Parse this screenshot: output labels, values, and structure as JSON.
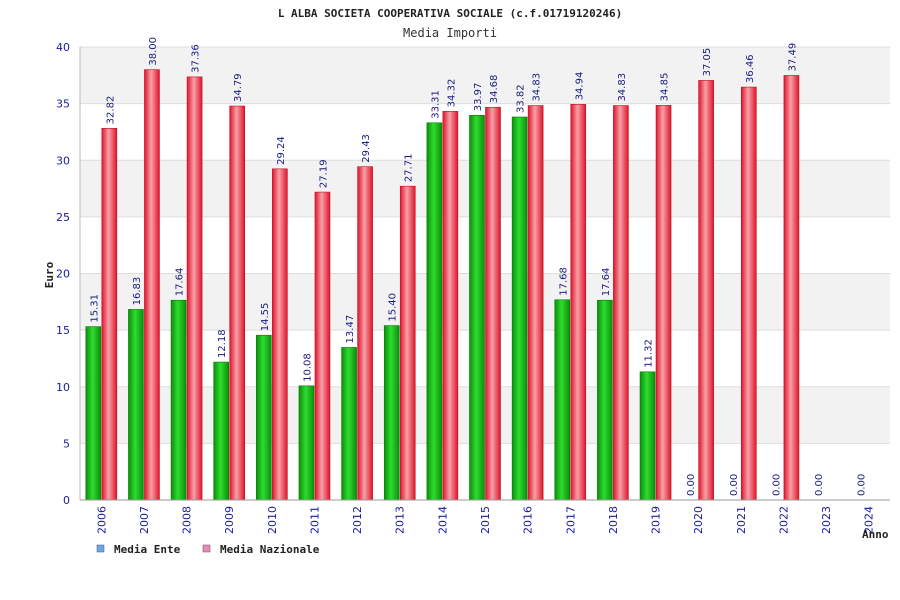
{
  "chart_data": {
    "type": "bar",
    "title": "L ALBA SOCIETA COOPERATIVA SOCIALE (c.f.01719120246)",
    "subtitle": "Media Importi",
    "ylabel": "Euro",
    "xlabel": "Anno",
    "ylim": [
      0,
      40
    ],
    "yticks": [
      "0",
      "5",
      "10",
      "15",
      "20",
      "25",
      "30",
      "35",
      "40"
    ],
    "grid": true,
    "legend_position": "bottom-left",
    "categories": [
      "2006",
      "2007",
      "2008",
      "2009",
      "2010",
      "2011",
      "2012",
      "2013",
      "2014",
      "2015",
      "2016",
      "2017",
      "2018",
      "2019",
      "2020",
      "2021",
      "2022",
      "2023",
      "2024"
    ],
    "series": [
      {
        "name": "Media Ente",
        "color": "#1fbf1f",
        "legend_color": "#6aa6ea",
        "values": [
          15.31,
          16.83,
          17.64,
          12.18,
          14.55,
          10.08,
          13.47,
          15.4,
          33.31,
          33.97,
          33.82,
          17.68,
          17.64,
          11.32,
          0.0,
          0.0,
          0.0,
          0.0,
          0.0
        ],
        "labels": [
          "15.31",
          "16.83",
          "17.64",
          "12.18",
          "14.55",
          "10.08",
          "13.47",
          "15.40",
          "33.31",
          "33.97",
          "33.82",
          "17.68",
          "17.64",
          "11.32",
          "0.00",
          "0.00",
          "0.00",
          "0.00",
          "0.00"
        ]
      },
      {
        "name": "Media Nazionale",
        "color": "#e8283a",
        "legend_color": "#e98ab9",
        "values": [
          32.82,
          38.0,
          37.36,
          34.79,
          29.24,
          27.19,
          29.43,
          27.71,
          34.32,
          34.68,
          34.83,
          34.94,
          34.83,
          34.85,
          37.05,
          36.46,
          37.49,
          null,
          null
        ],
        "labels": [
          "32.82",
          "38.00",
          "37.36",
          "34.79",
          "29.24",
          "27.19",
          "29.43",
          "27.71",
          "34.32",
          "34.68",
          "34.83",
          "34.94",
          "34.83",
          "34.85",
          "37.05",
          "36.46",
          "37.49",
          "",
          ""
        ]
      }
    ]
  }
}
